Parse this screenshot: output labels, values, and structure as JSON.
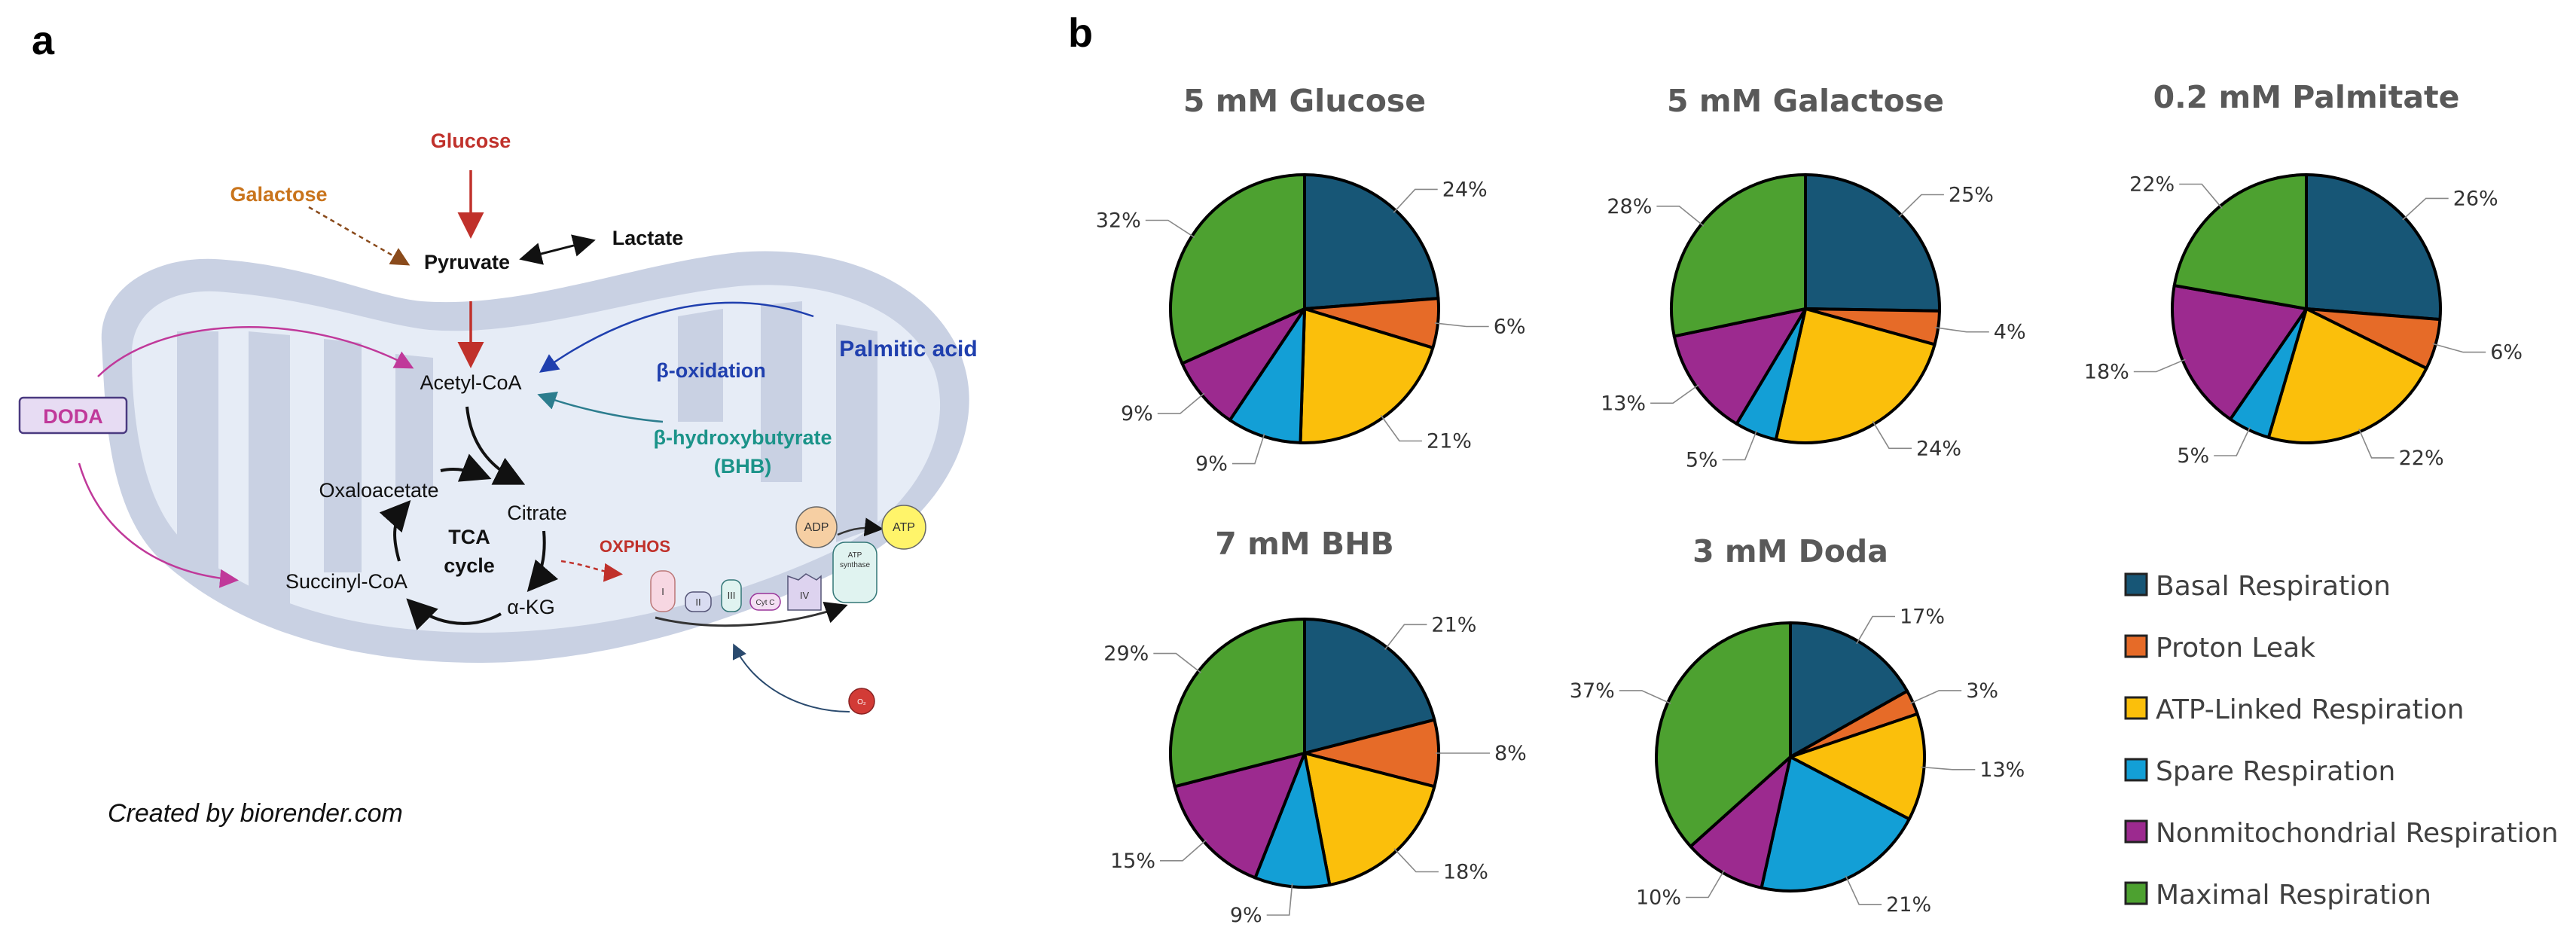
{
  "panel_a": {
    "letter": "a",
    "caption": "Created by biorender.com",
    "labels": {
      "glucose": "Glucose",
      "galactose": "Galactose",
      "pyruvate": "Pyruvate",
      "lactate": "Lactate",
      "acetyl_coa": "Acetyl-CoA",
      "beta_oxidation": "β-oxidation",
      "palmitic_acid": "Palmitic acid",
      "bhb_line1": "β-hydroxybutyrate",
      "bhb_line2": "(BHB)",
      "doda": "DODA",
      "oxaloacetate": "Oxaloacetate",
      "citrate": "Citrate",
      "tca1": "TCA",
      "tca2": "cycle",
      "succinyl_coa": "Succinyl-CoA",
      "akg": "α-KG",
      "oxphos": "OXPHOS",
      "adp": "ADP",
      "atp": "ATP",
      "atp_synthase1": "ATP",
      "atp_synthase2": "synthase",
      "complex_i": "I",
      "complex_ii": "II",
      "complex_iii": "III",
      "cyt_c": "Cyt C",
      "complex_iv": "IV",
      "o2": "O₂"
    },
    "colors": {
      "glucose": "#c0312b",
      "galactose": "#c9741c",
      "palmitic": "#1f3fae",
      "bhb": "#1b9389",
      "doda": "#c0399a",
      "oxphos": "#c0312b",
      "mito_outer": "#c9d1e3",
      "mito_inner": "#e8eef7"
    }
  },
  "panel_b": {
    "letter": "b"
  },
  "chart_data": {
    "type": "pie",
    "categories": [
      "Basal Respiration",
      "Proton Leak",
      "ATP-Linked Respiration",
      "Spare Respiration",
      "Nonmitochondrial Respiration",
      "Maximal Respiration"
    ],
    "colors": [
      "#175676",
      "#e66b28",
      "#fbbf0b",
      "#139fd6",
      "#9c2a8f",
      "#4da130"
    ],
    "legend_position": "bottom-right",
    "charts": [
      {
        "title": "5 mM Glucose",
        "values": [
          24,
          6,
          21,
          9,
          9,
          32
        ],
        "labels": [
          "24%",
          "6%",
          "21%",
          "9%",
          "9%",
          "32%"
        ]
      },
      {
        "title": "5 mM Galactose",
        "values": [
          25,
          4,
          24,
          5,
          13,
          28
        ],
        "labels": [
          "25%",
          "4%",
          "24%",
          "5%",
          "13%",
          "28%"
        ]
      },
      {
        "title": "0.2 mM Palmitate",
        "values": [
          26,
          6,
          22,
          5,
          18,
          22
        ],
        "labels": [
          "26%",
          "6%",
          "22%",
          "5%",
          "18%",
          "22%"
        ]
      },
      {
        "title": "7 mM BHB",
        "values": [
          21,
          8,
          18,
          9,
          15,
          29
        ],
        "labels": [
          "21%",
          "8%",
          "18%",
          "9%",
          "15%",
          "29%"
        ]
      },
      {
        "title": "3 mM Doda",
        "values": [
          17,
          3,
          13,
          21,
          10,
          37
        ],
        "labels": [
          "17%",
          "3%",
          "13%",
          "21%",
          "10%",
          "37%"
        ]
      }
    ]
  }
}
